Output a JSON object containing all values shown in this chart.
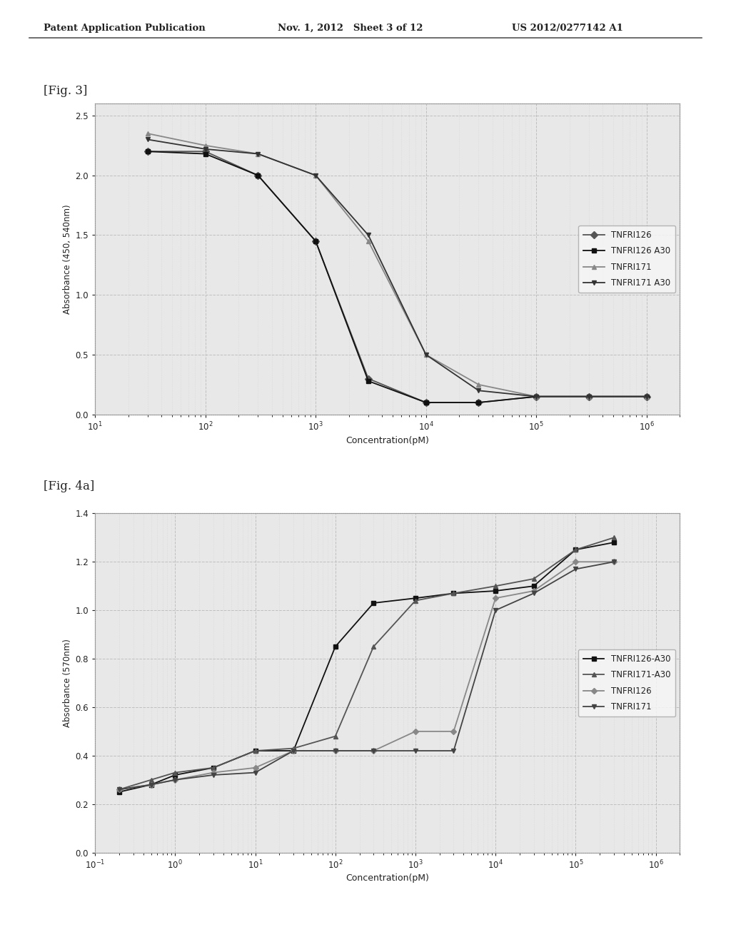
{
  "header_left": "Patent Application Publication",
  "header_mid": "Nov. 1, 2012   Sheet 3 of 12",
  "header_right": "US 2012/0277142 A1",
  "fig3_label": "[Fig. 3]",
  "fig4a_label": "[Fig. 4a]",
  "fig3": {
    "ylabel": "Absorbance (450, 540nm)",
    "xlabel": "Concentration(pM)",
    "ylim": [
      0,
      2.6
    ],
    "yticks": [
      0.0,
      0.5,
      1.0,
      1.5,
      2.0,
      2.5
    ],
    "xlim_log": [
      10,
      2000000
    ],
    "series": [
      {
        "label": "TNFRI126",
        "color": "#555555",
        "marker": "D",
        "markersize": 5,
        "x": [
          30,
          100,
          300,
          1000,
          3000,
          10000,
          30000,
          100000,
          300000,
          1000000
        ],
        "y": [
          2.2,
          2.2,
          2.0,
          1.45,
          0.3,
          0.1,
          0.1,
          0.15,
          0.15,
          0.15
        ]
      },
      {
        "label": "TNFRI126 A30",
        "color": "#111111",
        "marker": "s",
        "markersize": 5,
        "x": [
          30,
          100,
          300,
          1000,
          3000,
          10000,
          30000,
          100000,
          300000,
          1000000
        ],
        "y": [
          2.2,
          2.18,
          2.0,
          1.45,
          0.28,
          0.1,
          0.1,
          0.15,
          0.15,
          0.15
        ]
      },
      {
        "label": "TNFRI171",
        "color": "#888888",
        "marker": "^",
        "markersize": 5,
        "x": [
          30,
          100,
          300,
          1000,
          3000,
          10000,
          30000,
          100000,
          300000,
          1000000
        ],
        "y": [
          2.35,
          2.25,
          2.18,
          2.0,
          1.45,
          0.5,
          0.25,
          0.15,
          0.15,
          0.15
        ]
      },
      {
        "label": "TNFRI171 A30",
        "color": "#333333",
        "marker": "v",
        "markersize": 5,
        "x": [
          30,
          100,
          300,
          1000,
          3000,
          10000,
          30000,
          100000,
          300000,
          1000000
        ],
        "y": [
          2.3,
          2.22,
          2.18,
          2.0,
          1.5,
          0.5,
          0.2,
          0.15,
          0.15,
          0.15
        ]
      }
    ]
  },
  "fig4a": {
    "ylabel": "Absorbance (570nm)",
    "xlabel": "Concentration(pM)",
    "ylim": [
      0,
      1.4
    ],
    "yticks": [
      0.0,
      0.2,
      0.4,
      0.6,
      0.8,
      1.0,
      1.2,
      1.4
    ],
    "xlim_log": [
      0.1,
      2000000
    ],
    "series": [
      {
        "label": "TNFRI126-A30",
        "color": "#111111",
        "marker": "s",
        "markersize": 5,
        "x": [
          0.2,
          0.5,
          1,
          3,
          10,
          30,
          100,
          300,
          1000,
          3000,
          10000,
          30000,
          100000,
          300000
        ],
        "y": [
          0.25,
          0.28,
          0.32,
          0.35,
          0.42,
          0.42,
          0.85,
          1.03,
          1.05,
          1.07,
          1.08,
          1.1,
          1.25,
          1.28
        ]
      },
      {
        "label": "TNFRI171-A30",
        "color": "#555555",
        "marker": "^",
        "markersize": 5,
        "x": [
          0.2,
          0.5,
          1,
          3,
          10,
          30,
          100,
          300,
          1000,
          3000,
          10000,
          30000,
          100000,
          300000
        ],
        "y": [
          0.26,
          0.3,
          0.33,
          0.35,
          0.42,
          0.43,
          0.48,
          0.85,
          1.04,
          1.07,
          1.1,
          1.13,
          1.25,
          1.3
        ]
      },
      {
        "label": "TNFRI126",
        "color": "#888888",
        "marker": "D",
        "markersize": 4,
        "x": [
          0.2,
          0.5,
          1,
          3,
          10,
          30,
          100,
          300,
          1000,
          3000,
          10000,
          30000,
          100000,
          300000
        ],
        "y": [
          0.26,
          0.28,
          0.3,
          0.33,
          0.35,
          0.42,
          0.42,
          0.42,
          0.5,
          0.5,
          1.05,
          1.08,
          1.2,
          1.2
        ]
      },
      {
        "label": "TNFRI171",
        "color": "#444444",
        "marker": "v",
        "markersize": 4,
        "x": [
          0.2,
          0.5,
          1,
          3,
          10,
          30,
          100,
          300,
          1000,
          3000,
          10000,
          30000,
          100000,
          300000
        ],
        "y": [
          0.26,
          0.28,
          0.3,
          0.32,
          0.33,
          0.42,
          0.42,
          0.42,
          0.42,
          0.42,
          1.0,
          1.07,
          1.17,
          1.2
        ]
      }
    ]
  },
  "bg_color": "#ffffff",
  "plot_bg": "#e8e8e8",
  "chart_bg": "#ffffff",
  "text_color": "#222222",
  "grid_color": "#bbbbbb",
  "border_color": "#aaaaaa"
}
